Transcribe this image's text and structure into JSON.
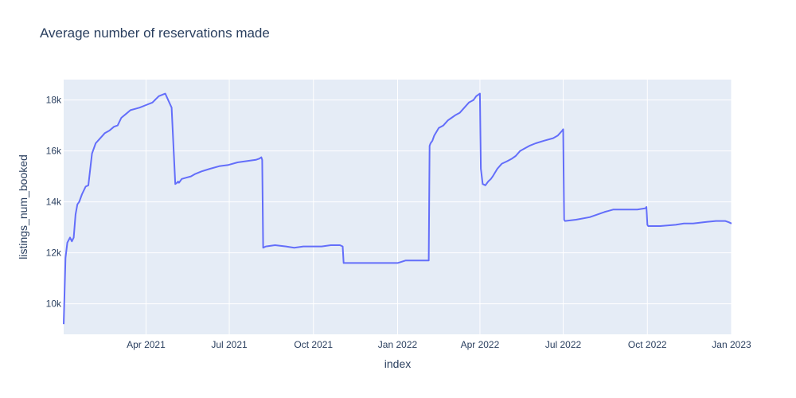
{
  "chart_data": {
    "type": "line",
    "title": "Average number of reservations made",
    "xlabel": "index",
    "ylabel": "listings_num_booked",
    "x_range": [
      "2021-01-01",
      "2023-01-01"
    ],
    "ylim": [
      8800,
      18800
    ],
    "grid": true,
    "legend": "none",
    "colors": {
      "line": "#636efa",
      "plot_bg": "#e5ecf6",
      "grid": "#ffffff",
      "text": "#2a3f5f"
    },
    "x_ticks": [
      {
        "date": "2021-04-01",
        "label": "Apr 2021"
      },
      {
        "date": "2021-07-01",
        "label": "Jul 2021"
      },
      {
        "date": "2021-10-01",
        "label": "Oct 2021"
      },
      {
        "date": "2022-01-01",
        "label": "Jan 2022"
      },
      {
        "date": "2022-04-01",
        "label": "Apr 2022"
      },
      {
        "date": "2022-07-01",
        "label": "Jul 2022"
      },
      {
        "date": "2022-10-01",
        "label": "Oct 2022"
      },
      {
        "date": "2023-01-01",
        "label": "Jan 2023"
      }
    ],
    "y_ticks": [
      {
        "value": 10000,
        "label": "10k"
      },
      {
        "value": 12000,
        "label": "12k"
      },
      {
        "value": 14000,
        "label": "14k"
      },
      {
        "value": 16000,
        "label": "16k"
      },
      {
        "value": 18000,
        "label": "18k"
      }
    ],
    "series": [
      {
        "x": [
          "2021-01-01",
          "2021-01-03",
          "2021-01-05",
          "2021-01-08",
          "2021-01-10",
          "2021-01-12",
          "2021-01-14",
          "2021-01-16",
          "2021-01-18",
          "2021-01-21",
          "2021-01-25",
          "2021-01-28",
          "2021-02-01",
          "2021-02-05",
          "2021-02-10",
          "2021-02-15",
          "2021-02-20",
          "2021-02-25",
          "2021-03-01",
          "2021-03-05",
          "2021-03-10",
          "2021-03-15",
          "2021-03-20",
          "2021-03-25",
          "2021-04-01",
          "2021-04-08",
          "2021-04-15",
          "2021-04-22",
          "2021-04-29",
          "2021-05-03",
          "2021-05-05",
          "2021-05-06",
          "2021-05-07",
          "2021-05-10",
          "2021-05-15",
          "2021-05-20",
          "2021-05-25",
          "2021-06-01",
          "2021-06-10",
          "2021-06-20",
          "2021-06-30",
          "2021-07-10",
          "2021-07-20",
          "2021-07-30",
          "2021-08-03",
          "2021-08-05",
          "2021-08-06",
          "2021-08-07",
          "2021-08-10",
          "2021-08-20",
          "2021-09-01",
          "2021-09-10",
          "2021-09-20",
          "2021-10-01",
          "2021-10-10",
          "2021-10-20",
          "2021-10-30",
          "2021-11-02",
          "2021-11-03",
          "2021-11-10",
          "2021-11-20",
          "2021-12-01",
          "2021-12-10",
          "2021-12-20",
          "2022-01-01",
          "2022-01-10",
          "2022-01-20",
          "2022-02-01",
          "2022-02-04",
          "2022-02-05",
          "2022-02-06",
          "2022-02-08",
          "2022-02-10",
          "2022-02-15",
          "2022-02-20",
          "2022-02-25",
          "2022-03-01",
          "2022-03-05",
          "2022-03-10",
          "2022-03-15",
          "2022-03-20",
          "2022-03-25",
          "2022-03-28",
          "2022-04-01",
          "2022-04-02",
          "2022-04-04",
          "2022-04-07",
          "2022-04-10",
          "2022-04-13",
          "2022-04-15",
          "2022-04-20",
          "2022-04-25",
          "2022-05-01",
          "2022-05-06",
          "2022-05-10",
          "2022-05-15",
          "2022-05-20",
          "2022-05-25",
          "2022-06-01",
          "2022-06-10",
          "2022-06-20",
          "2022-06-25",
          "2022-06-30",
          "2022-07-01",
          "2022-07-02",
          "2022-07-03",
          "2022-07-15",
          "2022-07-30",
          "2022-08-15",
          "2022-08-25",
          "2022-09-01",
          "2022-09-10",
          "2022-09-20",
          "2022-09-29",
          "2022-09-30",
          "2022-10-01",
          "2022-10-02",
          "2022-10-15",
          "2022-11-01",
          "2022-11-10",
          "2022-11-20",
          "2022-12-01",
          "2022-12-15",
          "2022-12-25",
          "2022-12-29",
          "2023-01-01"
        ],
        "y": [
          9200,
          11800,
          12400,
          12600,
          12450,
          12600,
          13500,
          13900,
          14000,
          14300,
          14600,
          14650,
          15900,
          16300,
          16500,
          16700,
          16800,
          16950,
          17000,
          17300,
          17450,
          17600,
          17650,
          17700,
          17800,
          17900,
          18150,
          18250,
          17700,
          14700,
          14750,
          14800,
          14750,
          14900,
          14950,
          15000,
          15100,
          15200,
          15300,
          15400,
          15450,
          15550,
          15600,
          15650,
          15700,
          15750,
          15650,
          12200,
          12250,
          12300,
          12250,
          12200,
          12250,
          12250,
          12250,
          12300,
          12300,
          12250,
          11600,
          11600,
          11600,
          11600,
          11600,
          11600,
          11600,
          11700,
          11700,
          11700,
          11700,
          16200,
          16300,
          16400,
          16600,
          16900,
          17000,
          17200,
          17300,
          17400,
          17500,
          17700,
          17900,
          18000,
          18150,
          18250,
          15300,
          14700,
          14650,
          14800,
          14900,
          15000,
          15300,
          15500,
          15600,
          15700,
          15800,
          16000,
          16100,
          16200,
          16300,
          16400,
          16500,
          16600,
          16800,
          16850,
          13300,
          13250,
          13300,
          13400,
          13600,
          13700,
          13700,
          13700,
          13700,
          13750,
          13800,
          13100,
          13050,
          13050,
          13100,
          13150,
          13150,
          13200,
          13250,
          13250,
          13200,
          13150
        ]
      }
    ]
  }
}
